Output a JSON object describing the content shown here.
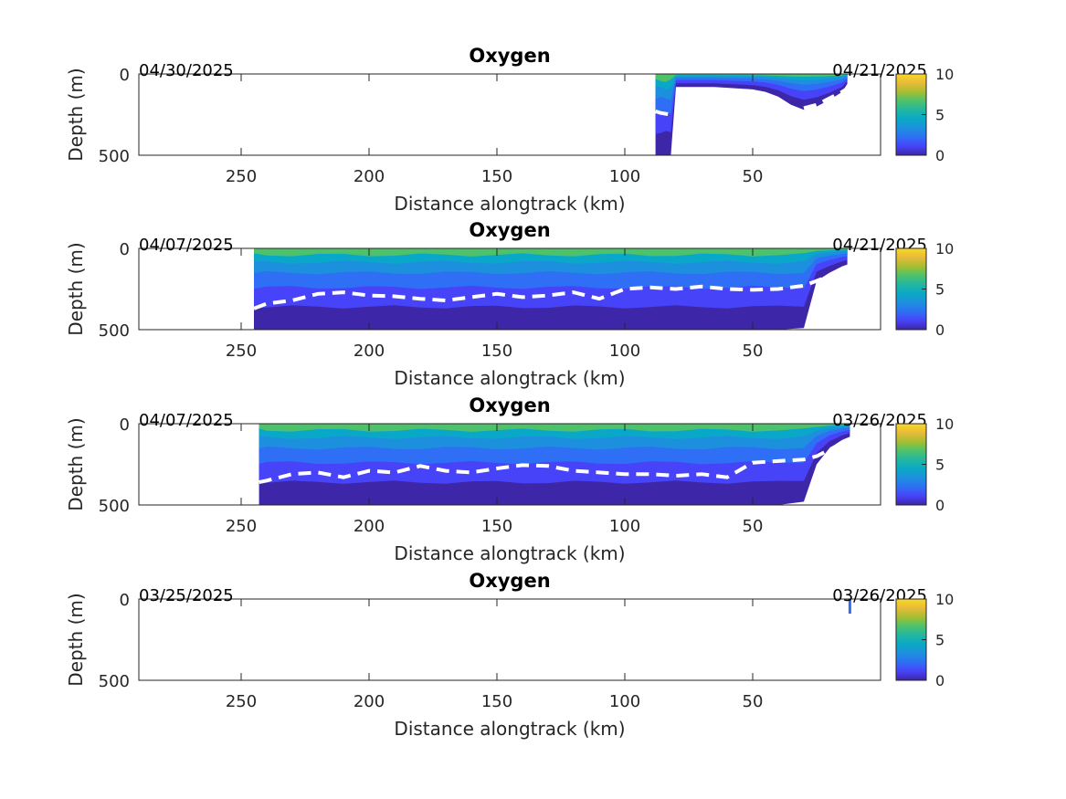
{
  "chart_data": [
    {
      "type": "heatmap",
      "title": "Oxygen",
      "xlabel": "Distance alongtrack (km)",
      "ylabel": "Depth (m)",
      "xlim": [
        290,
        0
      ],
      "ylim": [
        0,
        500
      ],
      "x_ticks": [
        250,
        200,
        150,
        100,
        50
      ],
      "y_ticks": [
        0,
        500
      ],
      "start_date": "04/30/2025",
      "end_date": "04/21/2025",
      "colorbar": {
        "ticks": [
          0,
          5,
          10
        ],
        "range": [
          0,
          10
        ]
      },
      "section": {
        "x": [
          88,
          86,
          84,
          82,
          80,
          75,
          70,
          65,
          60,
          55,
          50,
          45,
          40,
          35,
          30,
          25,
          20,
          15,
          13
        ],
        "bottom_depth": [
          500,
          500,
          500,
          500,
          80,
          80,
          80,
          80,
          85,
          90,
          95,
          110,
          140,
          190,
          220,
          200,
          160,
          110,
          60
        ],
        "oxycline_depth": [
          230,
          240,
          245,
          250,
          null,
          null,
          null,
          null,
          null,
          null,
          null,
          null,
          null,
          null,
          210,
          190,
          150,
          110,
          90
        ]
      }
    },
    {
      "type": "heatmap",
      "title": "Oxygen",
      "xlabel": "Distance alongtrack (km)",
      "ylabel": "Depth (m)",
      "xlim": [
        290,
        0
      ],
      "ylim": [
        0,
        500
      ],
      "x_ticks": [
        250,
        200,
        150,
        100,
        50
      ],
      "y_ticks": [
        0,
        500
      ],
      "start_date": "04/07/2025",
      "end_date": "04/21/2025",
      "colorbar": {
        "ticks": [
          0,
          5,
          10
        ],
        "range": [
          0,
          10
        ]
      },
      "section": {
        "x": [
          245,
          240,
          230,
          220,
          210,
          200,
          190,
          180,
          170,
          160,
          150,
          140,
          130,
          120,
          110,
          100,
          90,
          80,
          70,
          60,
          50,
          40,
          30,
          25,
          20,
          15,
          13
        ],
        "bottom_depth": [
          500,
          500,
          500,
          500,
          500,
          500,
          500,
          500,
          500,
          500,
          500,
          500,
          500,
          500,
          500,
          500,
          500,
          500,
          500,
          500,
          500,
          500,
          490,
          200,
          150,
          110,
          100
        ],
        "oxycline_depth": [
          370,
          340,
          320,
          280,
          270,
          290,
          295,
          310,
          320,
          300,
          280,
          300,
          290,
          270,
          310,
          250,
          240,
          250,
          235,
          250,
          255,
          250,
          230,
          200,
          170,
          140,
          120
        ]
      }
    },
    {
      "type": "heatmap",
      "title": "Oxygen",
      "xlabel": "Distance alongtrack (km)",
      "ylabel": "Depth (m)",
      "xlim": [
        290,
        0
      ],
      "ylim": [
        0,
        500
      ],
      "x_ticks": [
        250,
        200,
        150,
        100,
        50
      ],
      "y_ticks": [
        0,
        500
      ],
      "start_date": "04/07/2025",
      "end_date": "03/26/2025",
      "colorbar": {
        "ticks": [
          0,
          5,
          10
        ],
        "range": [
          0,
          10
        ]
      },
      "section": {
        "x": [
          243,
          240,
          230,
          220,
          210,
          200,
          190,
          180,
          170,
          160,
          150,
          140,
          130,
          120,
          110,
          100,
          90,
          80,
          70,
          60,
          50,
          40,
          30,
          25,
          20,
          15,
          12
        ],
        "bottom_depth": [
          500,
          500,
          500,
          500,
          500,
          500,
          500,
          500,
          500,
          500,
          500,
          500,
          500,
          500,
          500,
          500,
          500,
          500,
          500,
          500,
          500,
          500,
          480,
          250,
          150,
          100,
          80
        ],
        "oxycline_depth": [
          360,
          350,
          310,
          300,
          330,
          290,
          300,
          260,
          290,
          300,
          275,
          255,
          260,
          290,
          300,
          310,
          310,
          320,
          310,
          330,
          240,
          230,
          220,
          200,
          160,
          120,
          100
        ]
      }
    },
    {
      "type": "heatmap",
      "title": "Oxygen",
      "xlabel": "Distance alongtrack (km)",
      "ylabel": "Depth (m)",
      "xlim": [
        290,
        0
      ],
      "ylim": [
        0,
        500
      ],
      "x_ticks": [
        250,
        200,
        150,
        100,
        50
      ],
      "y_ticks": [
        0,
        500
      ],
      "start_date": "03/25/2025",
      "end_date": "03/26/2025",
      "colorbar": {
        "ticks": [
          0,
          5,
          10
        ],
        "range": [
          0,
          10
        ]
      },
      "section": {
        "x": [
          12
        ],
        "bottom_depth": [
          90
        ],
        "oxycline_depth": [
          null
        ]
      }
    }
  ],
  "colormap": [
    "#3e26a8",
    "#4743f8",
    "#2f6ff5",
    "#1d90dd",
    "#0aa8c8",
    "#21b6a1",
    "#4dc26b",
    "#a5be32",
    "#e8ba3a",
    "#f9d825"
  ]
}
